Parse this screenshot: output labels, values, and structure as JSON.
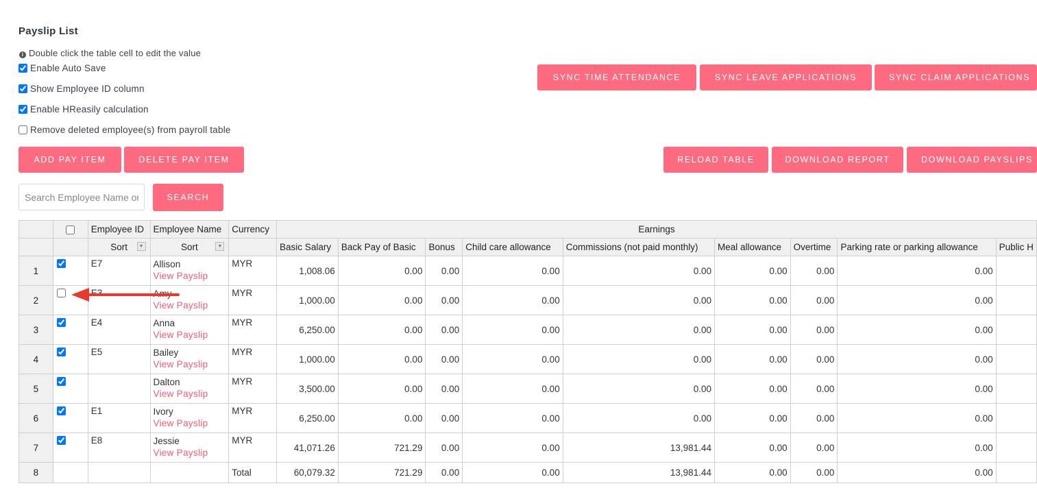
{
  "page": {
    "title": "Payslip List",
    "info_text": "Double click the table cell to edit the value"
  },
  "options": [
    {
      "label": "Enable Auto Save",
      "checked": true
    },
    {
      "label": "Show Employee ID column",
      "checked": true
    },
    {
      "label": "Enable HReasily calculation",
      "checked": true
    },
    {
      "label": "Remove deleted employee(s) from payroll table",
      "checked": false
    }
  ],
  "buttons": {
    "sync_time": "SYNC TIME ATTENDANCE",
    "sync_leave": "SYNC LEAVE APPLICATIONS",
    "sync_claim": "SYNC CLAIM APPLICATIONS",
    "add_pay_item": "ADD PAY ITEM",
    "delete_pay_item": "DELETE PAY ITEM",
    "reload_table": "RELOAD TABLE",
    "download_report": "DOWNLOAD REPORT",
    "download_payslips": "DOWNLOAD PAYSLIPS",
    "search": "SEARCH"
  },
  "search": {
    "placeholder": "Search Employee Name or ID",
    "value": ""
  },
  "colors": {
    "accent": "#fe6b80",
    "link": "#f15c74",
    "arrow": "#e8392b"
  },
  "table": {
    "header1": {
      "employee_id": "Employee ID",
      "employee_name": "Employee Name",
      "currency": "Currency",
      "earnings": "Earnings"
    },
    "sort_label": "Sort",
    "columns": [
      "Basic Salary",
      "Back Pay of Basic",
      "Bonus",
      "Child care allowance",
      "Commissions (not paid monthly)",
      "Meal allowance",
      "Overtime",
      "Parking rate or parking allowance",
      "Public H"
    ],
    "view_payslip": "View Payslip",
    "rows": [
      {
        "num": "1",
        "checked": true,
        "id": "E7",
        "name": "Allison",
        "currency": "MYR",
        "values": [
          "1,008.06",
          "0.00",
          "0.00",
          "0.00",
          "0.00",
          "0.00",
          "0.00",
          "0.00"
        ]
      },
      {
        "num": "2",
        "checked": false,
        "id": "E3",
        "name": "Amy",
        "currency": "MYR",
        "values": [
          "1,000.00",
          "0.00",
          "0.00",
          "0.00",
          "0.00",
          "0.00",
          "0.00",
          "0.00"
        ]
      },
      {
        "num": "3",
        "checked": true,
        "id": "E4",
        "name": "Anna",
        "currency": "MYR",
        "values": [
          "6,250.00",
          "0.00",
          "0.00",
          "0.00",
          "0.00",
          "0.00",
          "0.00",
          "0.00"
        ]
      },
      {
        "num": "4",
        "checked": true,
        "id": "E5",
        "name": "Bailey",
        "currency": "MYR",
        "values": [
          "1,000.00",
          "0.00",
          "0.00",
          "0.00",
          "0.00",
          "0.00",
          "0.00",
          "0.00"
        ]
      },
      {
        "num": "5",
        "checked": true,
        "id": "",
        "name": "Dalton",
        "currency": "MYR",
        "values": [
          "3,500.00",
          "0.00",
          "0.00",
          "0.00",
          "0.00",
          "0.00",
          "0.00",
          "0.00"
        ]
      },
      {
        "num": "6",
        "checked": true,
        "id": "E1",
        "name": "Ivory",
        "currency": "MYR",
        "values": [
          "6,250.00",
          "0.00",
          "0.00",
          "0.00",
          "0.00",
          "0.00",
          "0.00",
          "0.00"
        ]
      },
      {
        "num": "7",
        "checked": true,
        "id": "E8",
        "name": "Jessie",
        "currency": "MYR",
        "values": [
          "41,071.26",
          "721.29",
          "0.00",
          "0.00",
          "13,981.44",
          "0.00",
          "0.00",
          "0.00"
        ]
      }
    ],
    "total": {
      "num": "8",
      "label": "Total",
      "values": [
        "60,079.32",
        "721.29",
        "0.00",
        "0.00",
        "13,981.44",
        "0.00",
        "0.00",
        "0.00"
      ]
    }
  }
}
